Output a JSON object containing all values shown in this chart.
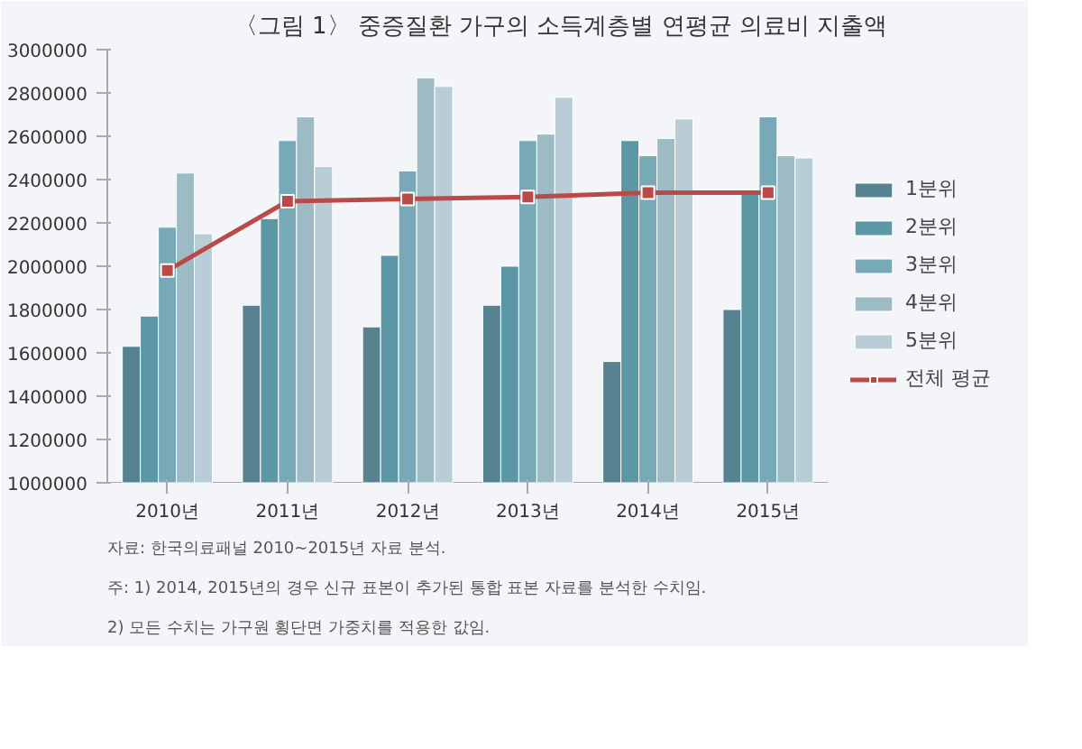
{
  "chart_data": {
    "type": "bar",
    "title": "〈그림 1〉 중증질환 가구의 소득계층별 연평균 의료비 지출액",
    "categories": [
      "2010년",
      "2011년",
      "2012년",
      "2013년",
      "2014년",
      "2015년"
    ],
    "series": [
      {
        "name": "1분위",
        "color": "#56838f",
        "values": [
          1630000,
          1820000,
          1720000,
          1820000,
          1560000,
          1800000
        ]
      },
      {
        "name": "2분위",
        "color": "#5b97a5",
        "values": [
          1770000,
          2220000,
          2050000,
          2000000,
          2580000,
          2340000
        ]
      },
      {
        "name": "3분위",
        "color": "#78a9b7",
        "values": [
          2180000,
          2580000,
          2440000,
          2580000,
          2510000,
          2690000
        ]
      },
      {
        "name": "4분위",
        "color": "#9dbbc4",
        "values": [
          2430000,
          2690000,
          2870000,
          2610000,
          2590000,
          2510000
        ]
      },
      {
        "name": "5분위",
        "color": "#b8cdd5",
        "values": [
          2150000,
          2460000,
          2830000,
          2780000,
          2680000,
          2500000
        ]
      },
      {
        "name": "전체 평균",
        "color": "#b94a48",
        "type": "line",
        "marker": "square",
        "values": [
          1980000,
          2300000,
          2310000,
          2320000,
          2340000,
          2340000
        ]
      }
    ],
    "ylim": [
      1000000,
      3000000
    ],
    "yticks": [
      1000000,
      1200000,
      1400000,
      1600000,
      1800000,
      2000000,
      2200000,
      2400000,
      2600000,
      2800000,
      3000000
    ],
    "grid": false,
    "legend": "right",
    "annotations": [
      "자료: 한국의료패널 2010~2015년 자료 분석.",
      "주: 1) 2014, 2015년의 경우 신규 표본이 추가된 통합 표본 자료를 분석한 수치임.",
      "     2) 모든 수치는 가구원 횡단면 가중치를 적용한 값임."
    ]
  }
}
